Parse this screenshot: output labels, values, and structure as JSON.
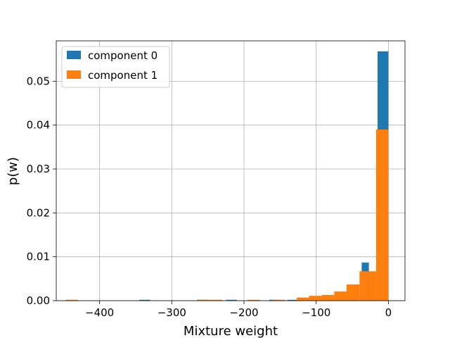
{
  "chart_data": {
    "type": "bar",
    "title": "",
    "xlabel": "Mixture weight",
    "ylabel": "p(w)",
    "xlim": [
      -460,
      23
    ],
    "ylim": [
      0,
      0.0592
    ],
    "grid": true,
    "legend_position": "top-left",
    "x_ticks": [
      {
        "value": -400,
        "label": "−400"
      },
      {
        "value": -300,
        "label": "−300"
      },
      {
        "value": -200,
        "label": "−200"
      },
      {
        "value": -100,
        "label": "−100"
      },
      {
        "value": 0,
        "label": "0"
      }
    ],
    "y_ticks": [
      {
        "value": 0.0,
        "label": "0.00"
      },
      {
        "value": 0.01,
        "label": "0.01"
      },
      {
        "value": 0.02,
        "label": "0.02"
      },
      {
        "value": 0.03,
        "label": "0.03"
      },
      {
        "value": 0.04,
        "label": "0.04"
      },
      {
        "value": 0.05,
        "label": "0.05"
      }
    ],
    "series": [
      {
        "name": "component 0",
        "color": "#1f77b4",
        "bins": [
          {
            "x0": -345,
            "x1": -330,
            "value": 0.0002
          },
          {
            "x0": -265,
            "x1": -250,
            "value": 0.0002
          },
          {
            "x0": -225,
            "x1": -210,
            "value": 0.0002
          },
          {
            "x0": -165,
            "x1": -150,
            "value": 0.0002
          },
          {
            "x0": -140,
            "x1": -125,
            "value": 0.0002
          },
          {
            "x0": -125,
            "x1": -110,
            "value": 0.0004
          },
          {
            "x0": -37,
            "x1": -27,
            "value": 0.0087
          },
          {
            "x0": -15,
            "x1": 0,
            "value": 0.0568
          }
        ]
      },
      {
        "name": "component 1",
        "color": "#ff7f0e",
        "bins": [
          {
            "x0": -447,
            "x1": -430,
            "value": 0.0002
          },
          {
            "x0": -265,
            "x1": -247,
            "value": 0.0002
          },
          {
            "x0": -247,
            "x1": -230,
            "value": 0.0002
          },
          {
            "x0": -195,
            "x1": -178,
            "value": 0.0002
          },
          {
            "x0": -160,
            "x1": -143,
            "value": 0.0002
          },
          {
            "x0": -127,
            "x1": -110,
            "value": 0.0007
          },
          {
            "x0": -110,
            "x1": -92,
            "value": 0.0011
          },
          {
            "x0": -92,
            "x1": -75,
            "value": 0.0013
          },
          {
            "x0": -75,
            "x1": -58,
            "value": 0.0021
          },
          {
            "x0": -58,
            "x1": -40,
            "value": 0.0037
          },
          {
            "x0": -40,
            "x1": -28,
            "value": 0.0067
          },
          {
            "x0": -28,
            "x1": -17,
            "value": 0.0067
          },
          {
            "x0": -17,
            "x1": 0,
            "value": 0.039
          }
        ]
      }
    ]
  }
}
